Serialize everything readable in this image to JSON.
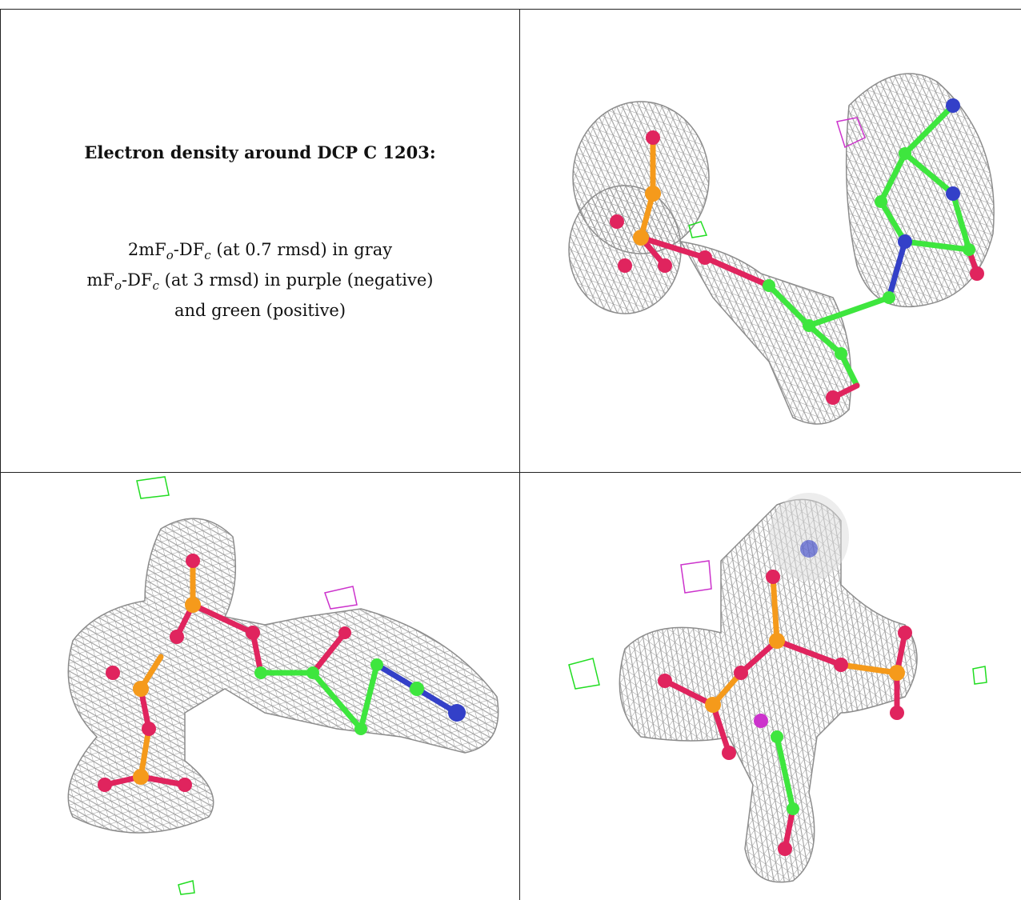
{
  "caption": {
    "heading": "Electron density around DCP C 1203:",
    "line1": "2mFo-DFc (at 0.7 rmsd) in gray",
    "line2": "mFo-DFc (at 3 rmsd) in purple (negative)",
    "line3": "and green (positive)"
  },
  "colors": {
    "mesh": "#9a9a9a",
    "positive": "#22dd22",
    "negative": "#cc33cc",
    "phosphorus": "#f59a1b",
    "oxygen": "#e0245e",
    "carbon": "#3ee63e",
    "nitrogen": "#3340c8"
  },
  "panels": [
    {
      "view": "top-right"
    },
    {
      "view": "bottom-left"
    },
    {
      "view": "bottom-right"
    }
  ]
}
